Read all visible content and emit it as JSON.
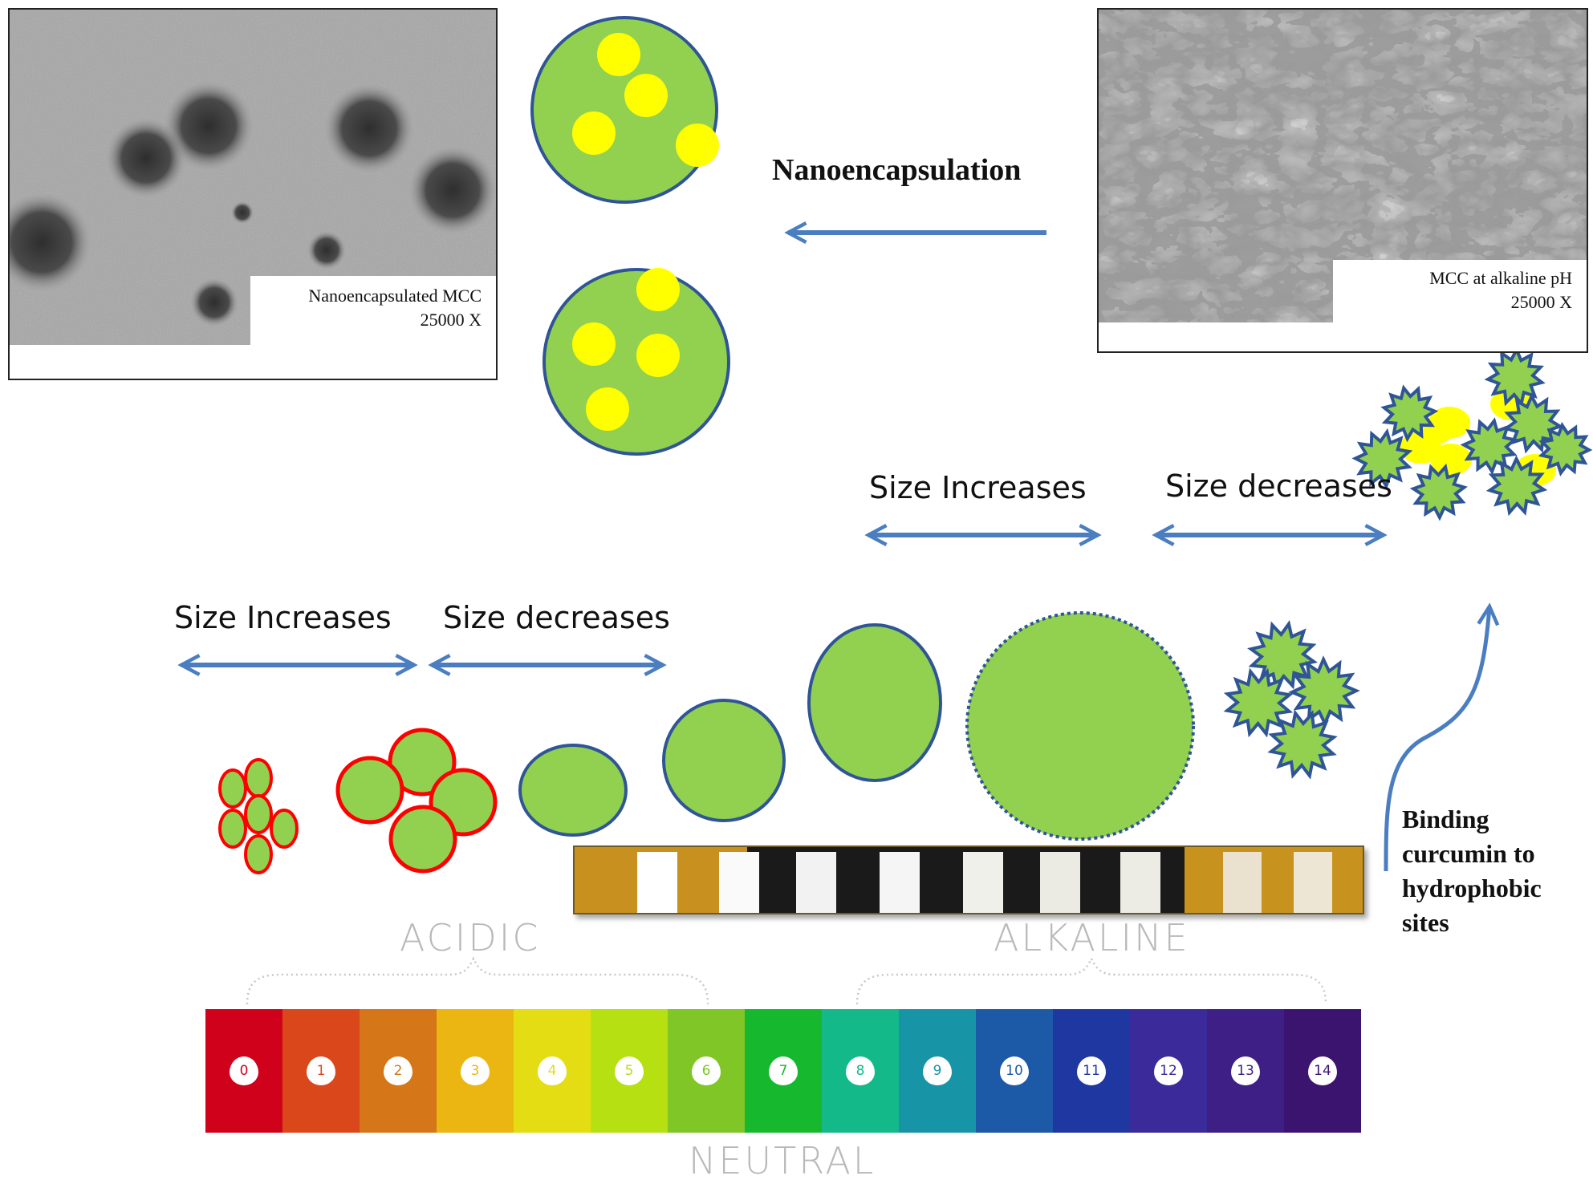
{
  "tem_left": {
    "caption_line1": "Nanoencapsulated MCC",
    "caption_line2": "25000 X"
  },
  "tem_right": {
    "caption_line1": "MCC at alkaline pH",
    "caption_line2": "25000 X"
  },
  "process_label": "Nanoencapsulation",
  "size_labels": {
    "acidic_increase": "Size Increases",
    "acidic_decrease": "Size decreases",
    "alkaline_increase": "Size Increases",
    "alkaline_decrease": "Size decreases"
  },
  "binding_note": {
    "line1": "Binding",
    "line2": "curcumin to",
    "line3": "hydrophobic",
    "line4": "sites"
  },
  "ph_scale": {
    "acidic_label": "ACIDIC",
    "alkaline_label": "ALKALINE",
    "neutral_label": "NEUTRAL",
    "values": [
      "0",
      "1",
      "2",
      "3",
      "4",
      "5",
      "6",
      "7",
      "8",
      "9",
      "10",
      "11",
      "12",
      "13",
      "14"
    ],
    "colors": [
      "#d0021b",
      "#d9471a",
      "#d57619",
      "#ebb611",
      "#e5dd13",
      "#b6e011",
      "#7fc626",
      "#16b82e",
      "#14b98a",
      "#1795a6",
      "#1c5aa8",
      "#1f37a1",
      "#3b2a9a",
      "#3d1f86",
      "#3b1470"
    ]
  },
  "colors": {
    "particle_fill": "#92d050",
    "particle_border": "#2f5597",
    "acid_border": "#ff0000",
    "curcumin": "#ffff00",
    "arrow": "#4a7ec0"
  }
}
